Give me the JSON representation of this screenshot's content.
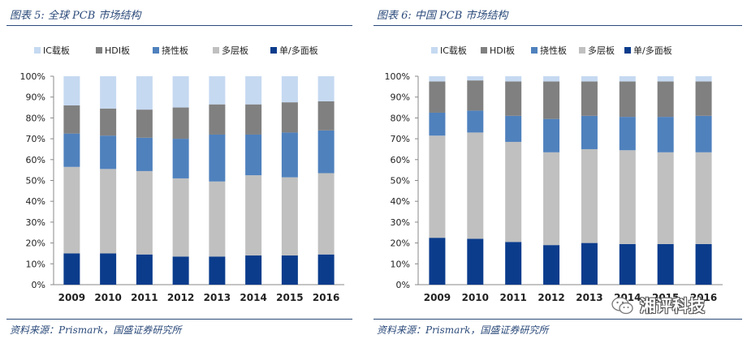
{
  "colors": {
    "ic_substrate": "#c5d9f1",
    "hdi": "#808080",
    "flex": "#4f81bd",
    "multilayer": "#c0c0c0",
    "single_double": "#0b3c8c",
    "title_text": "#2b4a7a"
  },
  "charts": [
    {
      "title": "图表 5:  全球 PCB 市场结构",
      "source": "资料来源：Prismark，国盛证券研究所"
    },
    {
      "title": "图表 6:  中国 PCB 市场结构",
      "source": "资料来源：Prismark，国盛证券研究所"
    }
  ],
  "watermark": {
    "text": "湘评科技",
    "icon": "wechat-icon"
  },
  "chart_data": [
    {
      "type": "bar",
      "stacked": true,
      "percent": true,
      "title": "全球 PCB 市场结构",
      "categories": [
        "2009",
        "2010",
        "2011",
        "2012",
        "2013",
        "2014",
        "2015",
        "2016"
      ],
      "yticks": [
        "0%",
        "10%",
        "20%",
        "30%",
        "40%",
        "50%",
        "60%",
        "70%",
        "80%",
        "90%",
        "100%"
      ],
      "ylim": [
        0,
        100
      ],
      "legend_position": "top",
      "series": [
        {
          "name": "单/多面板",
          "color_key": "single_double",
          "values": [
            15,
            15,
            14.5,
            13.5,
            13.5,
            14,
            14,
            14.5
          ]
        },
        {
          "name": "多层板",
          "color_key": "multilayer",
          "values": [
            41.5,
            40.5,
            40,
            37.5,
            36,
            38.5,
            37.5,
            39
          ]
        },
        {
          "name": "挠性板",
          "color_key": "flex",
          "values": [
            16,
            16,
            16,
            19,
            22.5,
            19.5,
            21.5,
            20.5
          ]
        },
        {
          "name": "HDI板",
          "color_key": "hdi",
          "values": [
            13.5,
            13,
            13.5,
            15,
            14.5,
            14.5,
            14.5,
            14
          ]
        },
        {
          "name": "IC载板",
          "color_key": "ic_substrate",
          "values": [
            14,
            15.5,
            16,
            15,
            13.5,
            13.5,
            12.5,
            12
          ]
        }
      ]
    },
    {
      "type": "bar",
      "stacked": true,
      "percent": true,
      "title": "中国 PCB 市场结构",
      "categories": [
        "2009",
        "2010",
        "2011",
        "2012",
        "2013",
        "2014",
        "2015",
        "2016"
      ],
      "yticks": [
        "0%",
        "10%",
        "20%",
        "30%",
        "40%",
        "50%",
        "60%",
        "70%",
        "80%",
        "90%",
        "100%"
      ],
      "ylim": [
        0,
        100
      ],
      "legend_position": "top",
      "series": [
        {
          "name": "单/多面板",
          "color_key": "single_double",
          "values": [
            22.5,
            22,
            20.5,
            19,
            20,
            19.5,
            19.5,
            19.5
          ]
        },
        {
          "name": "多层板",
          "color_key": "multilayer",
          "values": [
            49,
            51,
            48,
            44.5,
            45,
            45,
            44,
            44
          ]
        },
        {
          "name": "挠性板",
          "color_key": "flex",
          "values": [
            11,
            10.5,
            12.5,
            16,
            16,
            16,
            17,
            17.5
          ]
        },
        {
          "name": "HDI板",
          "color_key": "hdi",
          "values": [
            15,
            14.5,
            16.5,
            18,
            16.5,
            17,
            17,
            16.5
          ]
        },
        {
          "name": "IC载板",
          "color_key": "ic_substrate",
          "values": [
            2.5,
            2,
            2.5,
            2.5,
            2.5,
            2.5,
            2.5,
            2.5
          ]
        }
      ]
    }
  ]
}
